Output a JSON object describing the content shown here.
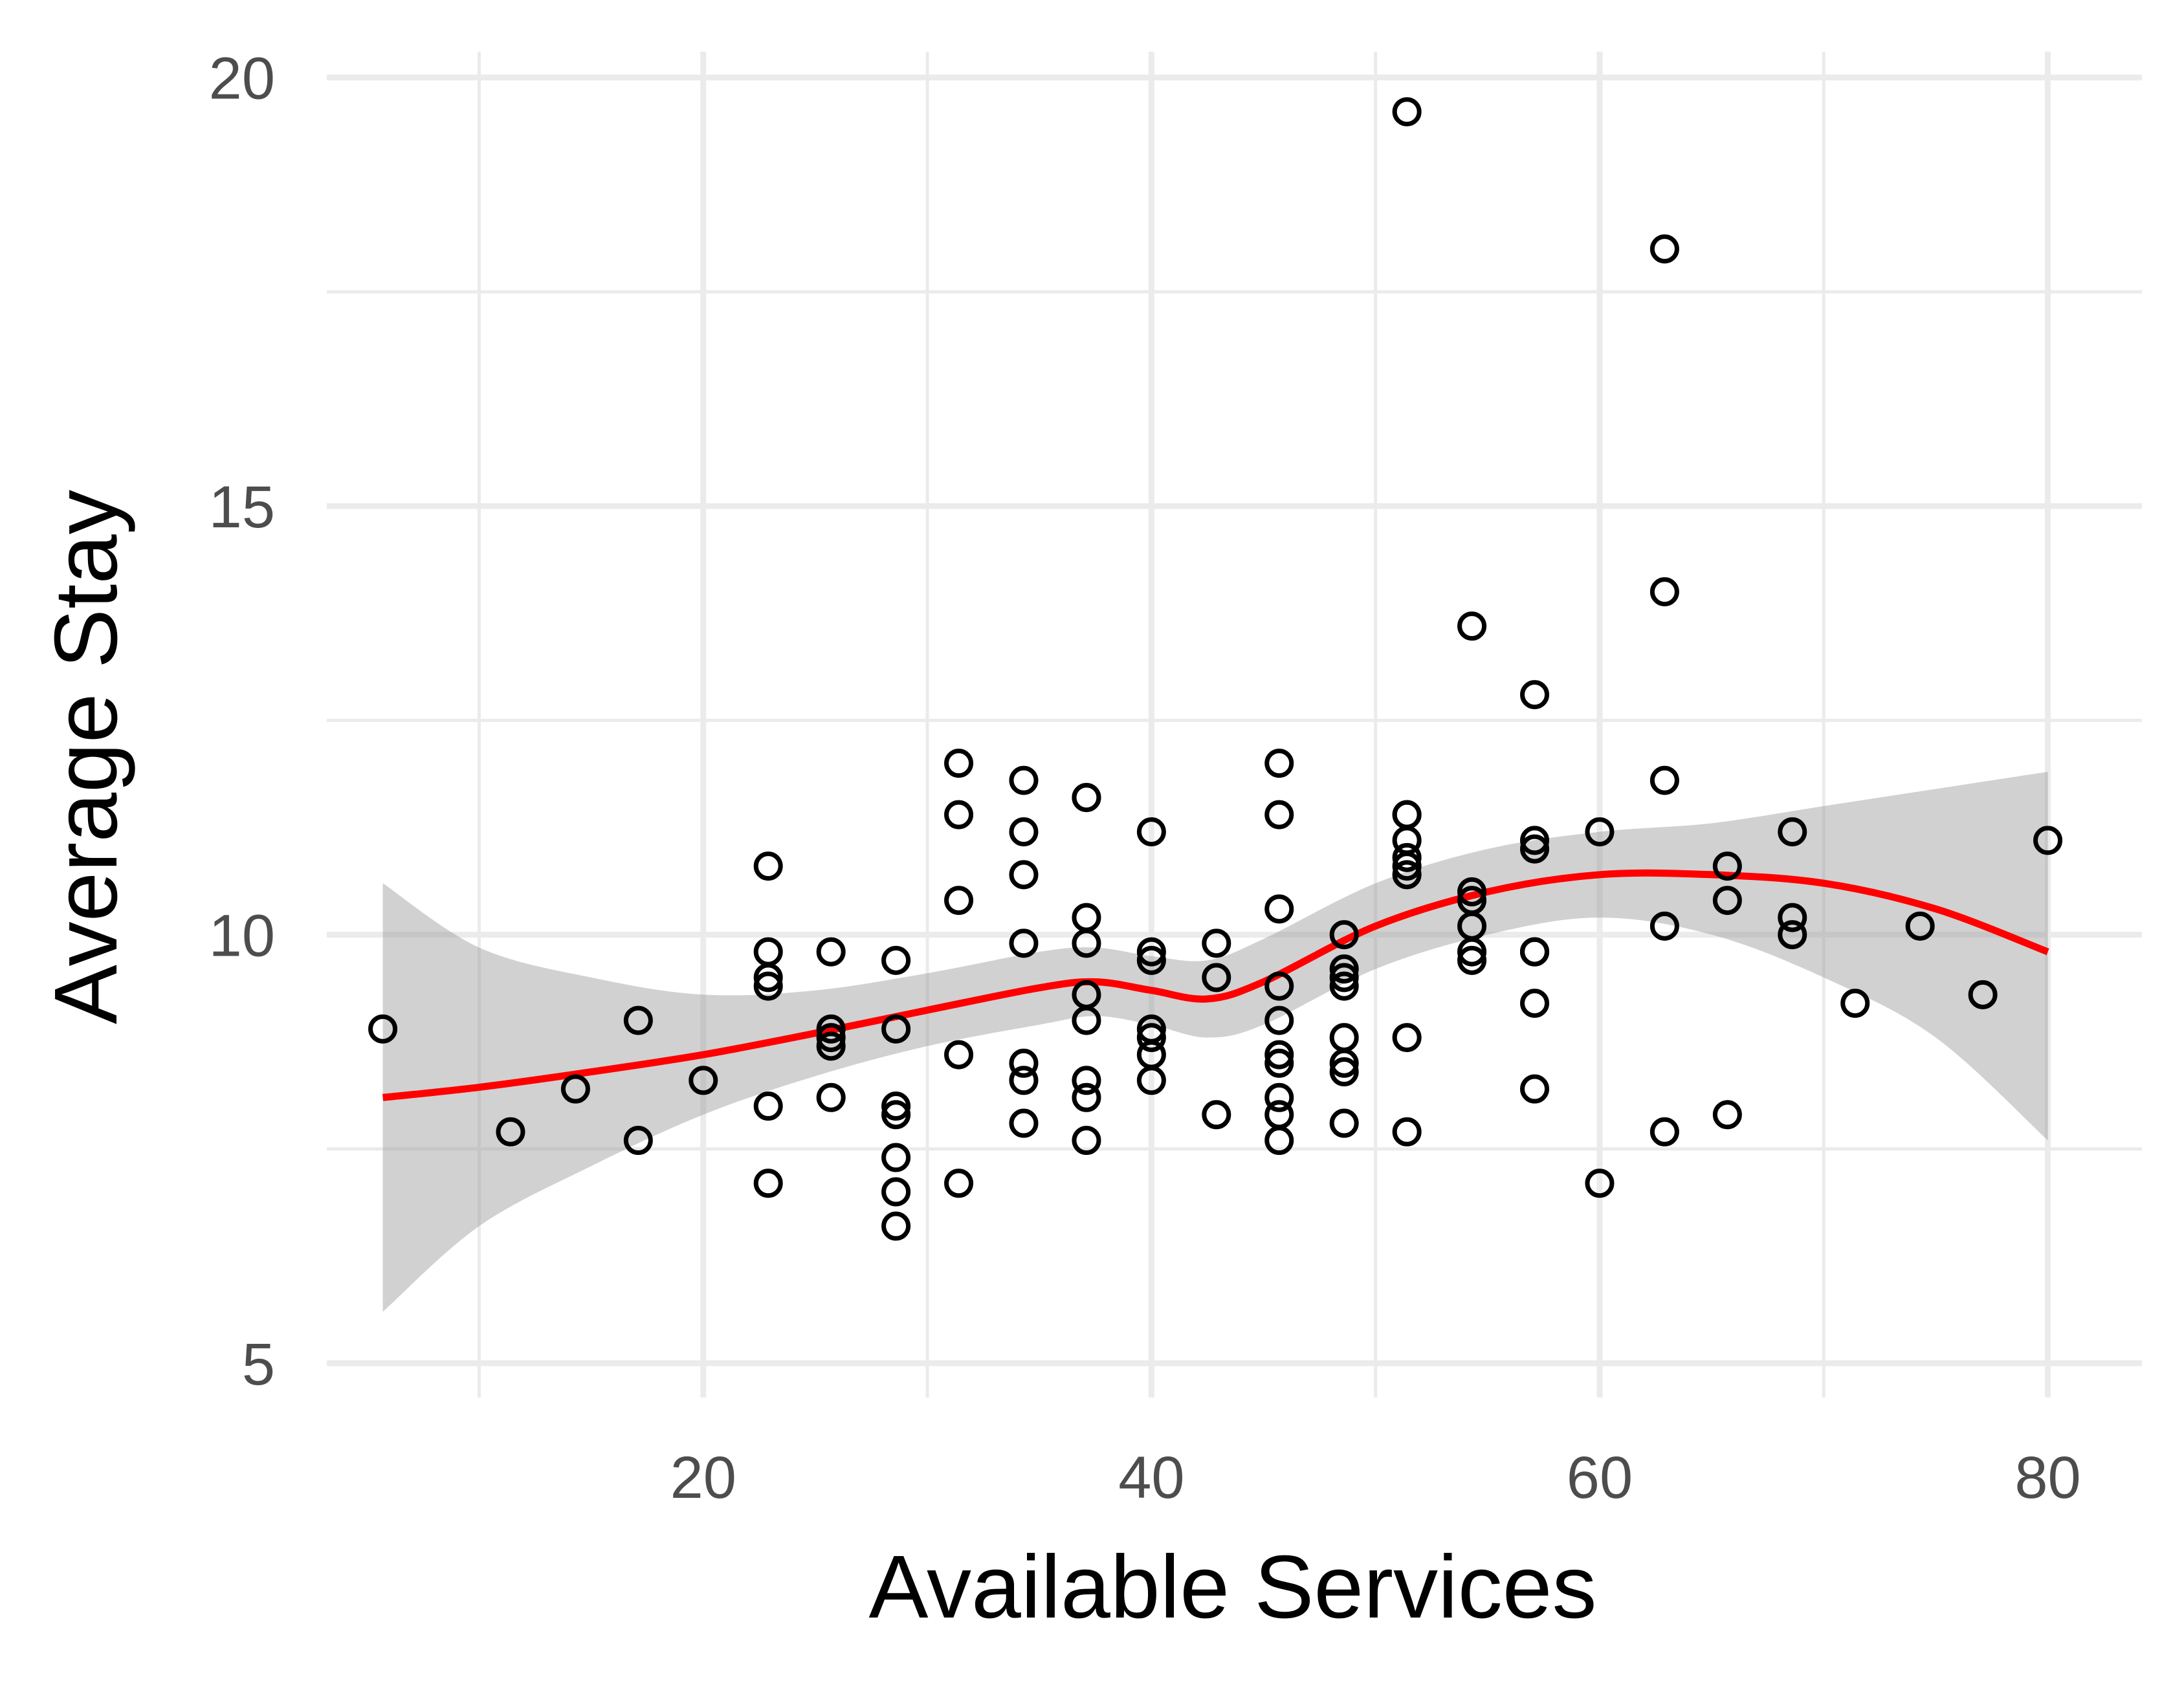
{
  "chart_data": {
    "type": "scatter",
    "title": "",
    "xlabel": "Available Services",
    "ylabel": "Average Stay",
    "xlim": [
      3.2,
      84.2
    ],
    "ylim": [
      4.6,
      20.3
    ],
    "x_ticks": [
      20,
      40,
      60,
      80
    ],
    "y_ticks": [
      5,
      10,
      15,
      20
    ],
    "x_tick_labels": [
      "20",
      "40",
      "60",
      "80"
    ],
    "y_tick_labels": [
      "5",
      "10",
      "15",
      "20"
    ],
    "x_minor_ticks": [
      10,
      30,
      50,
      70
    ],
    "y_minor_ticks": [
      7.5,
      12.5,
      17.5
    ],
    "grid": true,
    "colors": {
      "points": "#000000",
      "smooth_line": "#ff0000",
      "ribbon": "#999999",
      "grid": "#ebebeb"
    },
    "points": [
      [
        5.7,
        8.9
      ],
      [
        11.4,
        7.7
      ],
      [
        14.3,
        8.2
      ],
      [
        17.1,
        9.0
      ],
      [
        17.1,
        7.6
      ],
      [
        20.0,
        8.3
      ],
      [
        22.9,
        10.8
      ],
      [
        22.9,
        9.8
      ],
      [
        22.9,
        9.5
      ],
      [
        22.9,
        9.4
      ],
      [
        22.9,
        8.0
      ],
      [
        22.9,
        7.1
      ],
      [
        25.7,
        9.8
      ],
      [
        25.7,
        8.9
      ],
      [
        25.7,
        8.8
      ],
      [
        25.7,
        8.7
      ],
      [
        25.7,
        8.1
      ],
      [
        28.6,
        9.7
      ],
      [
        28.6,
        8.9
      ],
      [
        28.6,
        8.0
      ],
      [
        28.6,
        7.9
      ],
      [
        28.6,
        7.4
      ],
      [
        28.6,
        7.0
      ],
      [
        28.6,
        6.6
      ],
      [
        31.4,
        12.0
      ],
      [
        31.4,
        11.4
      ],
      [
        31.4,
        10.4
      ],
      [
        31.4,
        8.6
      ],
      [
        31.4,
        7.1
      ],
      [
        34.3,
        11.8
      ],
      [
        34.3,
        11.2
      ],
      [
        34.3,
        10.7
      ],
      [
        34.3,
        9.9
      ],
      [
        34.3,
        8.5
      ],
      [
        34.3,
        8.3
      ],
      [
        34.3,
        7.8
      ],
      [
        37.1,
        11.6
      ],
      [
        37.1,
        11.6
      ],
      [
        37.1,
        10.2
      ],
      [
        37.1,
        9.9
      ],
      [
        37.1,
        9.3
      ],
      [
        37.1,
        9.0
      ],
      [
        37.1,
        8.3
      ],
      [
        37.1,
        8.1
      ],
      [
        37.1,
        7.6
      ],
      [
        40.0,
        11.2
      ],
      [
        40.0,
        9.8
      ],
      [
        40.0,
        9.7
      ],
      [
        40.0,
        8.9
      ],
      [
        40.0,
        8.8
      ],
      [
        40.0,
        8.6
      ],
      [
        40.0,
        8.3
      ],
      [
        42.9,
        9.9
      ],
      [
        42.9,
        9.5
      ],
      [
        42.9,
        7.9
      ],
      [
        45.7,
        12.0
      ],
      [
        45.7,
        11.4
      ],
      [
        45.7,
        10.3
      ],
      [
        45.7,
        9.4
      ],
      [
        45.7,
        9.0
      ],
      [
        45.7,
        8.6
      ],
      [
        45.7,
        8.5
      ],
      [
        45.7,
        8.1
      ],
      [
        45.7,
        7.9
      ],
      [
        45.7,
        7.6
      ],
      [
        48.6,
        10.0
      ],
      [
        48.6,
        9.6
      ],
      [
        48.6,
        9.5
      ],
      [
        48.6,
        9.4
      ],
      [
        48.6,
        8.8
      ],
      [
        48.6,
        8.5
      ],
      [
        48.6,
        8.4
      ],
      [
        48.6,
        7.8
      ],
      [
        51.4,
        19.6
      ],
      [
        51.4,
        11.4
      ],
      [
        51.4,
        11.4
      ],
      [
        51.4,
        11.1
      ],
      [
        51.4,
        10.9
      ],
      [
        51.4,
        10.8
      ],
      [
        51.4,
        10.7
      ],
      [
        51.4,
        8.8
      ],
      [
        51.4,
        7.7
      ],
      [
        54.3,
        13.6
      ],
      [
        54.3,
        10.5
      ],
      [
        54.3,
        10.4
      ],
      [
        54.3,
        10.1
      ],
      [
        54.3,
        9.8
      ],
      [
        54.3,
        9.7
      ],
      [
        57.1,
        12.8
      ],
      [
        57.1,
        11.1
      ],
      [
        57.1,
        11.0
      ],
      [
        57.1,
        9.8
      ],
      [
        57.1,
        9.8
      ],
      [
        57.1,
        9.8
      ],
      [
        57.1,
        9.2
      ],
      [
        57.1,
        8.2
      ],
      [
        60.0,
        11.2
      ],
      [
        60.0,
        7.1
      ],
      [
        62.9,
        18.0
      ],
      [
        62.9,
        14.0
      ],
      [
        62.9,
        11.8
      ],
      [
        62.9,
        10.1
      ],
      [
        62.9,
        7.7
      ],
      [
        65.7,
        10.8
      ],
      [
        65.7,
        10.4
      ],
      [
        65.7,
        7.9
      ],
      [
        68.6,
        11.2
      ],
      [
        68.6,
        10.2
      ],
      [
        68.6,
        10.0
      ],
      [
        71.4,
        9.2
      ],
      [
        74.3,
        10.1
      ],
      [
        77.1,
        9.3
      ],
      [
        80.0,
        11.1
      ]
    ],
    "smooth": {
      "x": [
        5.7,
        10,
        15,
        20,
        25,
        30,
        35,
        37.5,
        40,
        42.5,
        45,
        50,
        55,
        60,
        65,
        70,
        75,
        80
      ],
      "y": [
        8.1,
        8.22,
        8.4,
        8.6,
        8.85,
        9.12,
        9.38,
        9.45,
        9.35,
        9.25,
        9.45,
        10.1,
        10.5,
        10.7,
        10.7,
        10.6,
        10.3,
        9.8
      ],
      "lower": [
        5.6,
        6.6,
        7.3,
        7.9,
        8.35,
        8.7,
        8.95,
        9.05,
        8.95,
        8.8,
        8.95,
        9.6,
        10.0,
        10.2,
        10.0,
        9.5,
        8.8,
        7.6
      ],
      "upper": [
        10.6,
        9.85,
        9.5,
        9.3,
        9.35,
        9.55,
        9.8,
        9.85,
        9.75,
        9.7,
        9.95,
        10.6,
        11.0,
        11.2,
        11.3,
        11.5,
        11.7,
        11.9
      ]
    }
  }
}
